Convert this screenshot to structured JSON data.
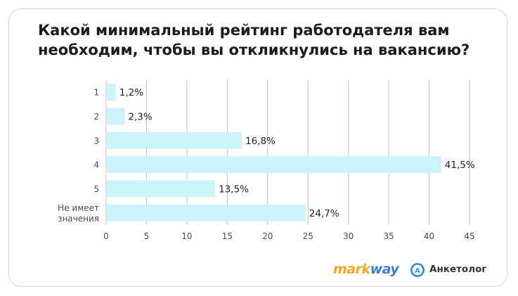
{
  "title": "Какой минимальный рейтинг работодателя вам необходим, чтобы вы откликнулись на вакансию?",
  "colors": {
    "bar": "#ccf2fd",
    "grid": "#bdbdbd",
    "axis_text": "#4a4a4a",
    "label_text": "#1f1f1f",
    "markway_orange": "#f0a91e",
    "markway_blue": "#3b7fd4",
    "anketolog_blue": "#3a8fd8"
  },
  "chart_data": {
    "type": "bar",
    "orientation": "horizontal",
    "categories": [
      "1",
      "2",
      "3",
      "4",
      "5",
      "Не имеет значения"
    ],
    "values": [
      1.2,
      2.3,
      16.8,
      41.5,
      13.5,
      24.7
    ],
    "value_labels": [
      "1,2%",
      "2,3%",
      "16,8%",
      "41,5%",
      "13,5%",
      "24,7%"
    ],
    "x_ticks": [
      "0",
      "5",
      "10",
      "15",
      "20",
      "25",
      "30",
      "35",
      "40",
      "45"
    ],
    "xlim": [
      0,
      45
    ],
    "grid": true,
    "legend": false
  },
  "logos": {
    "markway_part1": "mark",
    "markway_part2": "way",
    "anketolog_label": "Анкетолог",
    "anketolog_icon_letter": "A"
  }
}
